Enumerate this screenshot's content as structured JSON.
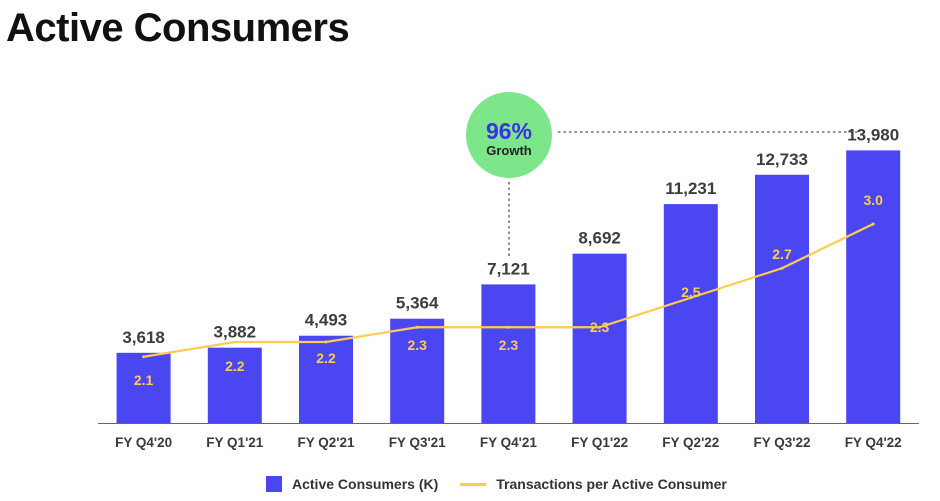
{
  "page_title": "Active Consumers",
  "colors": {
    "bar": "#4a46f2",
    "line": "#ffcc4d",
    "bar_label": "#3d3d3d",
    "line_label": "#ffcc4d",
    "badge": "#7ee68a",
    "badge_value": "#3a30e8",
    "axis": "#666666",
    "leader": "#555555"
  },
  "chart_data": {
    "type": "bar",
    "title": "Active Consumers",
    "categories": [
      "FY Q4'20",
      "FY Q1'21",
      "FY Q2'21",
      "FY Q3'21",
      "FY Q4'21",
      "FY Q1'22",
      "FY Q2'22",
      "FY Q3'22",
      "FY Q4'22"
    ],
    "series": [
      {
        "name": "Active Consumers (K)",
        "type": "bar",
        "values": [
          3618,
          3882,
          4493,
          5364,
          7121,
          8692,
          11231,
          12733,
          13980
        ],
        "labels": [
          "3,618",
          "3,882",
          "4,493",
          "5,364",
          "7,121",
          "8,692",
          "11,231",
          "12,733",
          "13,980"
        ]
      },
      {
        "name": "Transactions per Active Consumer",
        "type": "line",
        "values": [
          2.1,
          2.2,
          2.2,
          2.3,
          2.3,
          2.3,
          2.5,
          2.7,
          3.0
        ],
        "labels": [
          "2.1",
          "2.2",
          "2.2",
          "2.3",
          "2.3",
          "2.3",
          "2.5",
          "2.7",
          "3.0"
        ]
      }
    ],
    "ylim": [
      0,
      14000
    ],
    "ylim_secondary": [
      1.8,
      3.1
    ],
    "grid": false,
    "legend": "bottom-center",
    "annotation": {
      "value": "96%",
      "label": "Growth"
    }
  }
}
